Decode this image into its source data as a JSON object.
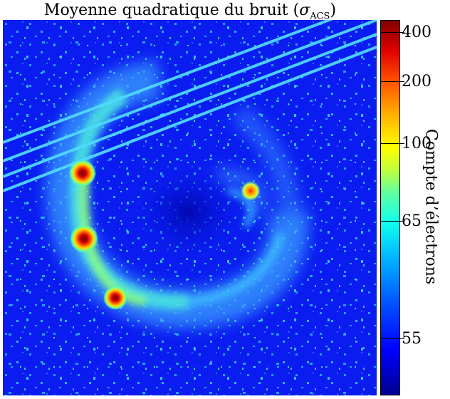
{
  "figure": {
    "title_text": "Moyenne quadratique du bruit (",
    "title_symbol": "σ",
    "title_subscript": "ACS",
    "title_close": ")"
  },
  "colorbar": {
    "label": "Compte d’électrons",
    "scale": "log",
    "ticks": [
      "400",
      "200",
      "100",
      "65",
      "55"
    ],
    "colormap": "jet"
  },
  "image": {
    "description_colors": {
      "background": "#0a1cf0",
      "ring": "#4aa8ff",
      "hot": "#ff1a00",
      "core": "#8a0000"
    },
    "bright_sources": 4,
    "diagonal_streaks": 4
  }
}
